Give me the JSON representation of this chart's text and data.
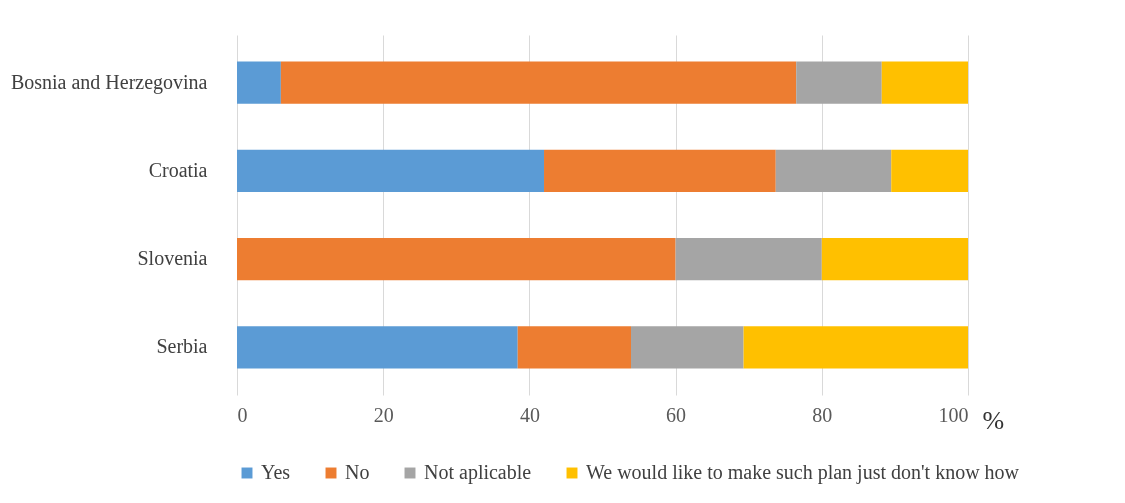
{
  "chart_data": {
    "type": "bar",
    "orientation": "horizontal",
    "stacked": true,
    "categories": [
      "Bosnia and Herzegovina",
      "Croatia",
      "Slovenia",
      "Serbia"
    ],
    "series": [
      {
        "name": "Yes",
        "color": "#5b9bd5",
        "values": [
          6,
          42,
          0,
          38.4
        ]
      },
      {
        "name": "No",
        "color": "#ed7d31",
        "values": [
          70.5,
          31.7,
          60,
          15.5
        ]
      },
      {
        "name": "Not aplicable",
        "color": "#a5a5a5",
        "values": [
          11.7,
          15.8,
          20,
          15.4
        ]
      },
      {
        "name": "We would like to make such plan just  don't know how",
        "color": "#ffc000",
        "values": [
          11.8,
          10.5,
          20,
          30.7
        ]
      }
    ],
    "xlim": [
      0,
      100
    ],
    "xticks": [
      0,
      20,
      40,
      60,
      80,
      100
    ],
    "xlabel": "%",
    "grid": "x",
    "legend": "bottom"
  }
}
